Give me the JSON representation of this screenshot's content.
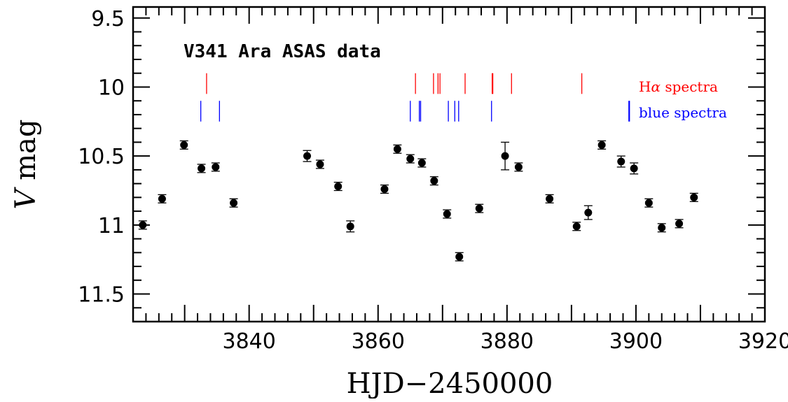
{
  "chart_data": {
    "type": "scatter",
    "title": "V341 Ara  ASAS data",
    "xlabel": "HJD−2450000",
    "ylabel_italic": "V",
    "ylabel_rest": " mag",
    "xlim": [
      3822,
      3920
    ],
    "ylim": [
      11.7,
      9.42
    ],
    "y_inverted": true,
    "grid": false,
    "x_ticks": [
      {
        "value": 3840,
        "label": "3840"
      },
      {
        "value": 3860,
        "label": "3860"
      },
      {
        "value": 3880,
        "label": "3880"
      },
      {
        "value": 3900,
        "label": "3900"
      },
      {
        "value": 3920,
        "label": "3920"
      }
    ],
    "y_ticks": [
      {
        "value": 9.5,
        "label": "9.5"
      },
      {
        "value": 10,
        "label": "10"
      },
      {
        "value": 10.5,
        "label": "10.5"
      },
      {
        "value": 11,
        "label": "11"
      },
      {
        "value": 11.5,
        "label": "11.5"
      }
    ],
    "series": [
      {
        "type": "errorbar-points",
        "color": "#000000",
        "points": [
          {
            "x": 3823.5,
            "y": 11.0,
            "err": 0.03
          },
          {
            "x": 3826.5,
            "y": 10.81,
            "err": 0.03
          },
          {
            "x": 3829.9,
            "y": 10.42,
            "err": 0.03
          },
          {
            "x": 3832.6,
            "y": 10.59,
            "err": 0.03
          },
          {
            "x": 3834.8,
            "y": 10.58,
            "err": 0.03
          },
          {
            "x": 3837.6,
            "y": 10.84,
            "err": 0.03
          },
          {
            "x": 3849.0,
            "y": 10.5,
            "err": 0.04
          },
          {
            "x": 3851.0,
            "y": 10.56,
            "err": 0.03
          },
          {
            "x": 3853.8,
            "y": 10.72,
            "err": 0.03
          },
          {
            "x": 3855.7,
            "y": 11.01,
            "err": 0.04
          },
          {
            "x": 3861.0,
            "y": 10.74,
            "err": 0.03
          },
          {
            "x": 3863.0,
            "y": 10.45,
            "err": 0.03
          },
          {
            "x": 3865.0,
            "y": 10.52,
            "err": 0.03
          },
          {
            "x": 3866.8,
            "y": 10.55,
            "err": 0.03
          },
          {
            "x": 3868.7,
            "y": 10.68,
            "err": 0.03
          },
          {
            "x": 3870.7,
            "y": 10.92,
            "err": 0.03
          },
          {
            "x": 3872.6,
            "y": 11.23,
            "err": 0.03
          },
          {
            "x": 3875.7,
            "y": 10.88,
            "err": 0.03
          },
          {
            "x": 3879.7,
            "y": 10.5,
            "err": 0.1
          },
          {
            "x": 3881.8,
            "y": 10.58,
            "err": 0.03
          },
          {
            "x": 3886.6,
            "y": 10.81,
            "err": 0.03
          },
          {
            "x": 3890.8,
            "y": 11.01,
            "err": 0.03
          },
          {
            "x": 3892.6,
            "y": 10.91,
            "err": 0.05
          },
          {
            "x": 3894.7,
            "y": 10.42,
            "err": 0.03
          },
          {
            "x": 3897.7,
            "y": 10.54,
            "err": 0.04
          },
          {
            "x": 3899.7,
            "y": 10.59,
            "err": 0.04
          },
          {
            "x": 3902.0,
            "y": 10.84,
            "err": 0.03
          },
          {
            "x": 3904.0,
            "y": 11.02,
            "err": 0.03
          },
          {
            "x": 3906.7,
            "y": 10.99,
            "err": 0.03
          },
          {
            "x": 3909.0,
            "y": 10.8,
            "err": 0.03
          }
        ]
      }
    ],
    "spectra_markers": [
      {
        "name": "Hα spectra",
        "label_prefix": "H",
        "label_greek": "α",
        "label_suffix": " spectra",
        "color": "#ff0000",
        "y_top": 9.9,
        "y_bottom": 10.05,
        "x": [
          3833.4,
          3865.8,
          3868.6,
          3869.3,
          3869.6,
          3873.5,
          3877.7,
          3877.8,
          3880.7,
          3891.6
        ]
      },
      {
        "name": "blue spectra",
        "label_prefix": "blue spectra",
        "label_greek": "",
        "label_suffix": "",
        "color": "#0000ff",
        "y_top": 10.1,
        "y_bottom": 10.25,
        "x": [
          3832.5,
          3835.4,
          3865.0,
          3866.4,
          3866.6,
          3870.9,
          3871.9,
          3872.5,
          3877.6,
          3898.9,
          3899.0
        ]
      }
    ]
  }
}
